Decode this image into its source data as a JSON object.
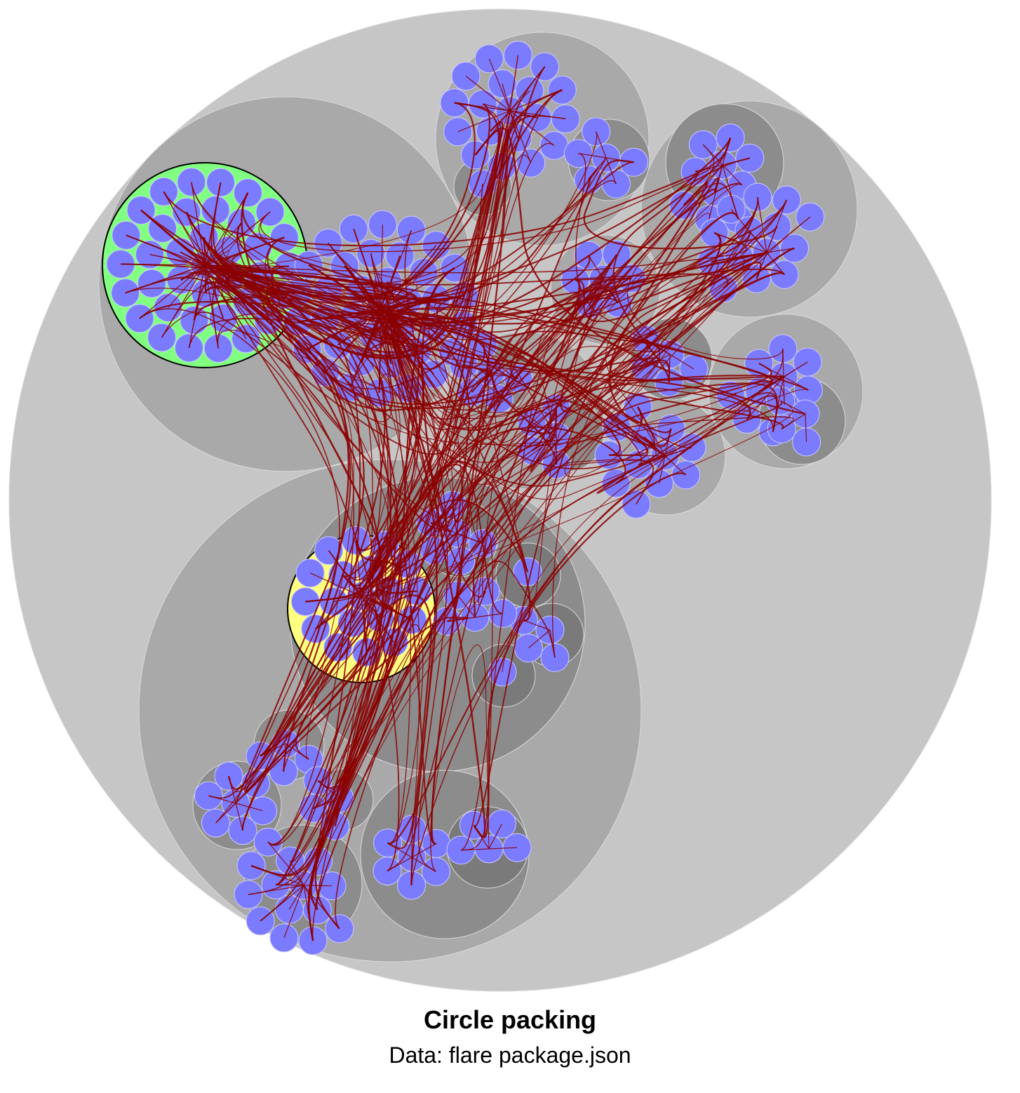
{
  "caption": {
    "title": "Circle packing",
    "subtitle": "Data: flare package.json"
  },
  "colors": {
    "root_fill": "#c6c6c6",
    "level1_fill": "#a9a9a9",
    "level2_fill": "#8c8c8c",
    "level3_fill": "#7a7a7a",
    "leaf_fill": "#7b7bff",
    "leaf_stroke": "#c9c9ff",
    "highlight_source_fill": "#80ff80",
    "highlight_target_fill": "#ffff80",
    "edge_color": "#8b0000",
    "outline_stroke": "#000000"
  }
}
